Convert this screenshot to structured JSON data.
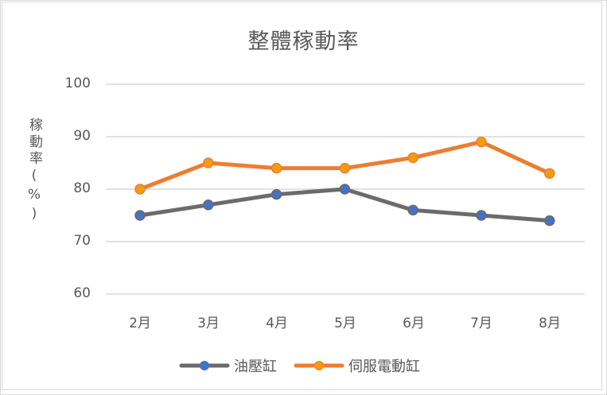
{
  "chart_data": {
    "type": "line",
    "title": "整體稼動率",
    "xlabel": "",
    "ylabel": "稼動率(%)",
    "categories": [
      "2月",
      "3月",
      "4月",
      "5月",
      "6月",
      "7月",
      "8月"
    ],
    "series": [
      {
        "name": "油壓缸",
        "values": [
          75,
          77,
          79,
          80,
          76,
          75,
          74
        ],
        "line_color": "#6d6a6a",
        "marker_color": "#4472c4"
      },
      {
        "name": "伺服電動缸",
        "values": [
          80,
          85,
          84,
          84,
          86,
          89,
          83
        ],
        "line_color": "#ed7d31",
        "marker_color": "#f39c12"
      }
    ],
    "ylim": [
      60,
      100
    ],
    "yticks": [
      100,
      90,
      80,
      70,
      60
    ],
    "grid": true,
    "legend_position": "bottom"
  },
  "labels": {
    "title": "整體稼動率",
    "ylabel": "稼動率(%)",
    "yticks": [
      "100",
      "90",
      "80",
      "70",
      "60"
    ],
    "xticks": [
      "2月",
      "3月",
      "4月",
      "5月",
      "6月",
      "7月",
      "8月"
    ],
    "legend": [
      "油壓缸",
      "伺服電動缸"
    ]
  }
}
